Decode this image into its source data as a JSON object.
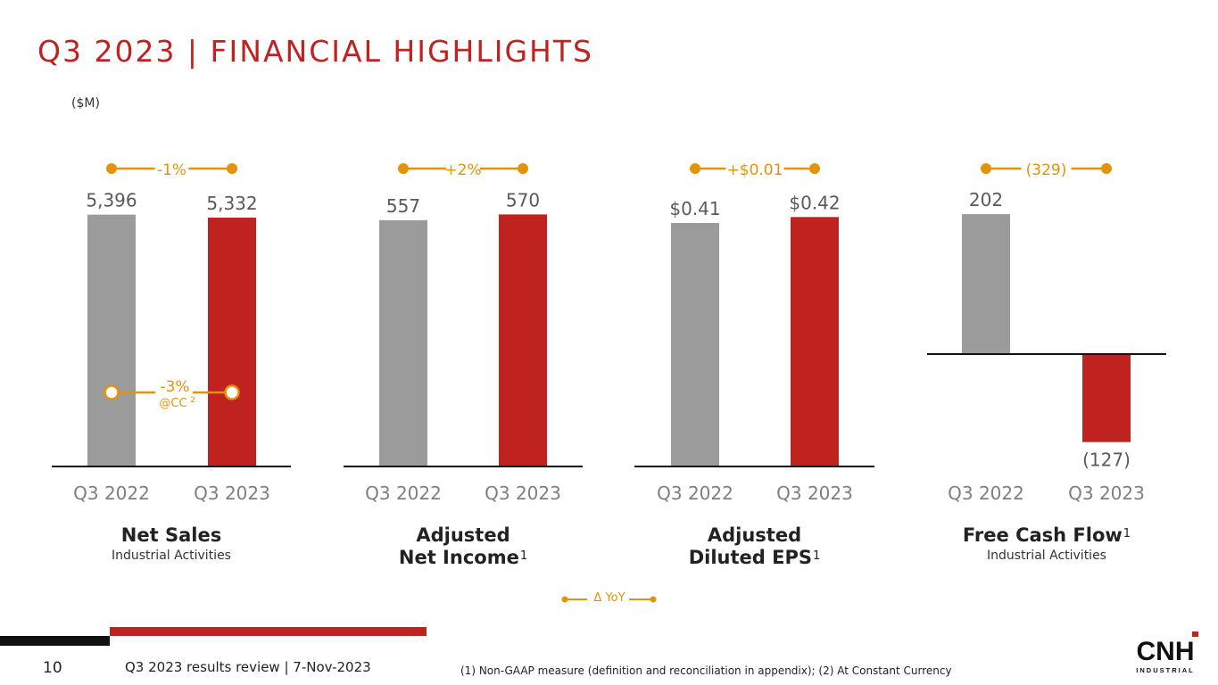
{
  "header": {
    "title": "Q3 2023 | FINANCIAL HIGHLIGHTS",
    "units": "($M)"
  },
  "colors": {
    "prior": "#9b9b9b",
    "current": "#c0221f",
    "accent": "#e3930a",
    "brand_red": "#c0221f"
  },
  "chart_data": [
    {
      "type": "bar",
      "title": "Net Sales",
      "subtitle": "Industrial Activities",
      "footnote_mark": "",
      "categories": [
        "Q3 2022",
        "Q3 2023"
      ],
      "values": [
        5396,
        5332
      ],
      "labels": [
        "5,396",
        "5,332"
      ],
      "ylim": [
        0,
        5600
      ],
      "delta": "-1%",
      "delta_cc": {
        "value": "-3%",
        "note": "@CC",
        "note_sup": "2"
      }
    },
    {
      "type": "bar",
      "title": "Adjusted",
      "title2": "Net Income",
      "subtitle": "",
      "footnote_mark": "1",
      "categories": [
        "Q3 2022",
        "Q3 2023"
      ],
      "values": [
        557,
        570
      ],
      "labels": [
        "557",
        "570"
      ],
      "ylim": [
        0,
        591
      ],
      "delta": "+2%"
    },
    {
      "type": "bar",
      "title": "Adjusted",
      "title2": "Diluted EPS",
      "subtitle": "",
      "footnote_mark": "1",
      "categories": [
        "Q3 2022",
        "Q3 2023"
      ],
      "values": [
        0.41,
        0.42
      ],
      "labels": [
        "$0.41",
        "$0.42"
      ],
      "ylim": [
        0,
        0.44
      ],
      "delta": "+$0.01"
    },
    {
      "type": "bar",
      "title": "Free Cash Flow",
      "subtitle": "Industrial Activities",
      "footnote_mark": "1",
      "categories": [
        "Q3 2022",
        "Q3 2023"
      ],
      "values": [
        202,
        -127
      ],
      "labels": [
        "202",
        "(127)"
      ],
      "ylim": [
        -160,
        215
      ],
      "delta": "(329)"
    }
  ],
  "legend": {
    "label": "Δ YoY"
  },
  "footer": {
    "page_number": "10",
    "text": "Q3 2023 results review | 7-Nov-2023",
    "footnote": "(1) Non-GAAP measure (definition and reconciliation in appendix); (2) At Constant Currency"
  },
  "logo": {
    "main": "CNH",
    "sub": "INDUSTRIAL"
  }
}
